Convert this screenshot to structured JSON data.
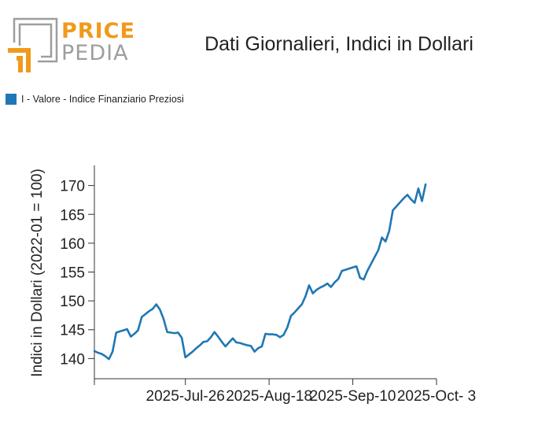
{
  "logo": {
    "word1": "PRICE",
    "word2": "PEDIA",
    "accent_color": "#f09a1b",
    "gray_color": "#9e9e9e"
  },
  "title": "Dati Giornalieri, Indici in Dollari",
  "chart_data": {
    "type": "line",
    "title": "Dati Giornalieri, Indici in Dollari",
    "ylabel": "Indici in Dollari (2022-01 = 100)",
    "xlabel": "",
    "ylim": [
      136.5,
      173.5
    ],
    "yticks": [
      140,
      145,
      150,
      155,
      160,
      165,
      170
    ],
    "x_range": [
      "2025-07-01",
      "2025-10-03"
    ],
    "xticks": [
      {
        "date": "2025-07-01",
        "label": ""
      },
      {
        "date": "2025-07-26",
        "label": "2025-Jul-26"
      },
      {
        "date": "2025-08-18",
        "label": "2025-Aug-18"
      },
      {
        "date": "2025-09-10",
        "label": "2025-Sep-10"
      },
      {
        "date": "2025-10-03",
        "label": "2025-Oct- 3"
      }
    ],
    "grid": false,
    "legend": "top-left",
    "series": [
      {
        "name": "I - Valore - Indice Finanziario Preziosi",
        "color": "#1f77b4",
        "points": [
          [
            "2025-07-01",
            141.3
          ],
          [
            "2025-07-02",
            141.0
          ],
          [
            "2025-07-03",
            140.8
          ],
          [
            "2025-07-04",
            140.4
          ],
          [
            "2025-07-05",
            139.9
          ],
          [
            "2025-07-06",
            141.2
          ],
          [
            "2025-07-07",
            144.5
          ],
          [
            "2025-07-08",
            144.7
          ],
          [
            "2025-07-09",
            144.9
          ],
          [
            "2025-07-10",
            145.1
          ],
          [
            "2025-07-11",
            143.8
          ],
          [
            "2025-07-12",
            144.3
          ],
          [
            "2025-07-13",
            144.9
          ],
          [
            "2025-07-14",
            147.2
          ],
          [
            "2025-07-15",
            147.7
          ],
          [
            "2025-07-16",
            148.2
          ],
          [
            "2025-07-17",
            148.6
          ],
          [
            "2025-07-18",
            149.4
          ],
          [
            "2025-07-19",
            148.5
          ],
          [
            "2025-07-20",
            146.9
          ],
          [
            "2025-07-21",
            144.6
          ],
          [
            "2025-07-22",
            144.5
          ],
          [
            "2025-07-23",
            144.4
          ],
          [
            "2025-07-24",
            144.5
          ],
          [
            "2025-07-25",
            143.6
          ],
          [
            "2025-07-26",
            140.2
          ],
          [
            "2025-07-27",
            140.7
          ],
          [
            "2025-07-28",
            141.2
          ],
          [
            "2025-07-29",
            141.8
          ],
          [
            "2025-07-30",
            142.3
          ],
          [
            "2025-07-31",
            142.9
          ],
          [
            "2025-08-01",
            143.0
          ],
          [
            "2025-08-02",
            143.7
          ],
          [
            "2025-08-03",
            144.6
          ],
          [
            "2025-08-04",
            143.8
          ],
          [
            "2025-08-05",
            142.9
          ],
          [
            "2025-08-06",
            142.1
          ],
          [
            "2025-08-07",
            142.8
          ],
          [
            "2025-08-08",
            143.5
          ],
          [
            "2025-08-09",
            142.8
          ],
          [
            "2025-08-10",
            142.7
          ],
          [
            "2025-08-11",
            142.5
          ],
          [
            "2025-08-12",
            142.3
          ],
          [
            "2025-08-13",
            142.2
          ],
          [
            "2025-08-14",
            141.2
          ],
          [
            "2025-08-15",
            141.8
          ],
          [
            "2025-08-16",
            142.1
          ],
          [
            "2025-08-17",
            144.3
          ],
          [
            "2025-08-18",
            144.2
          ],
          [
            "2025-08-19",
            144.2
          ],
          [
            "2025-08-20",
            144.1
          ],
          [
            "2025-08-21",
            143.7
          ],
          [
            "2025-08-22",
            144.1
          ],
          [
            "2025-08-23",
            145.4
          ],
          [
            "2025-08-24",
            147.4
          ],
          [
            "2025-08-25",
            148.0
          ],
          [
            "2025-08-26",
            148.7
          ],
          [
            "2025-08-27",
            149.4
          ],
          [
            "2025-08-28",
            150.8
          ],
          [
            "2025-08-29",
            152.7
          ],
          [
            "2025-08-30",
            151.3
          ],
          [
            "2025-08-31",
            151.9
          ],
          [
            "2025-09-01",
            152.3
          ],
          [
            "2025-09-02",
            152.6
          ],
          [
            "2025-09-03",
            153.0
          ],
          [
            "2025-09-04",
            152.4
          ],
          [
            "2025-09-05",
            153.2
          ],
          [
            "2025-09-06",
            153.8
          ],
          [
            "2025-09-07",
            155.2
          ],
          [
            "2025-09-08",
            155.4
          ],
          [
            "2025-09-09",
            155.6
          ],
          [
            "2025-09-10",
            155.8
          ],
          [
            "2025-09-11",
            156.0
          ],
          [
            "2025-09-12",
            154.0
          ],
          [
            "2025-09-13",
            153.7
          ],
          [
            "2025-09-14",
            155.2
          ],
          [
            "2025-09-15",
            156.4
          ],
          [
            "2025-09-16",
            157.6
          ],
          [
            "2025-09-17",
            158.8
          ],
          [
            "2025-09-18",
            161.0
          ],
          [
            "2025-09-19",
            160.3
          ],
          [
            "2025-09-20",
            162.1
          ],
          [
            "2025-09-21",
            165.7
          ],
          [
            "2025-09-22",
            166.4
          ],
          [
            "2025-09-23",
            167.1
          ],
          [
            "2025-09-24",
            167.8
          ],
          [
            "2025-09-25",
            168.4
          ],
          [
            "2025-09-26",
            167.6
          ],
          [
            "2025-09-27",
            167.0
          ],
          [
            "2025-09-28",
            169.5
          ],
          [
            "2025-09-29",
            167.3
          ],
          [
            "2025-09-30",
            170.2
          ]
        ]
      }
    ]
  }
}
